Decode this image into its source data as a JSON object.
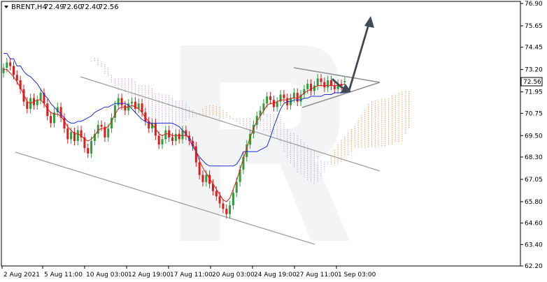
{
  "header": {
    "symbol": "BRENT,H4",
    "open": "72.49",
    "high": "72.60",
    "low": "72.40",
    "close": "72.56"
  },
  "current_price_label": "72.56",
  "colors": {
    "bull": "#2e9e3a",
    "bear": "#e01b1b",
    "tenkan": "#e01b1b",
    "kijun": "#1e2fd8",
    "cloud_bull": "#f0a060",
    "cloud_bear": "#c8a0e0",
    "channel": "#a0a0a0",
    "arrow": "#404a55"
  },
  "chart_data": {
    "type": "candlestick",
    "y_axis_ticks": [
      "76.90",
      "75.65",
      "74.45",
      "73.20",
      "71.95",
      "70.75",
      "69.50",
      "68.30",
      "67.05",
      "65.80",
      "64.60",
      "63.40",
      "62.20"
    ],
    "ylim": [
      62.2,
      76.9
    ],
    "x_axis_ticks": [
      "2 Aug 2021",
      "5 Aug 11:00",
      "10 Aug 03:00",
      "12 Aug 19:00",
      "17 Aug 11:00",
      "20 Aug 03:00",
      "24 Aug 19:00",
      "27 Aug 11:00",
      "1 Sep 03:00"
    ],
    "closes": [
      73.3,
      73.6,
      73.4,
      72.9,
      72.6,
      72.1,
      71.4,
      71.0,
      71.6,
      71.2,
      71.5,
      71.9,
      71.3,
      70.6,
      70.2,
      70.8,
      71.1,
      70.5,
      69.9,
      69.3,
      69.7,
      69.2,
      69.8,
      69.4,
      68.8,
      68.5,
      69.2,
      69.6,
      70.1,
      70.0,
      69.4,
      69.9,
      70.5,
      71.2,
      71.6,
      71.2,
      70.9,
      71.3,
      71.4,
      71.0,
      71.3,
      70.8,
      70.3,
      69.9,
      70.2,
      69.5,
      69.0,
      69.3,
      69.8,
      69.4,
      69.2,
      69.6,
      69.3,
      69.8,
      69.5,
      69.2,
      68.9,
      68.0,
      67.3,
      66.9,
      67.3,
      66.8,
      66.4,
      66.1,
      65.7,
      65.4,
      65.1,
      65.6,
      66.3,
      66.9,
      67.6,
      68.3,
      69.0,
      69.6,
      70.1,
      70.6,
      70.9,
      71.3,
      71.7,
      71.5,
      71.1,
      71.4,
      71.8,
      71.6,
      71.2,
      71.6,
      71.9,
      71.4,
      71.8,
      72.1,
      72.4,
      72.0,
      72.3,
      72.7,
      72.5,
      72.2,
      72.6,
      72.3,
      72.1,
      72.4,
      72.3,
      72.56
    ],
    "opens": [
      73.0,
      73.3,
      73.6,
      73.4,
      72.9,
      72.6,
      72.1,
      71.4,
      71.0,
      71.6,
      71.2,
      71.5,
      71.9,
      71.3,
      70.6,
      70.2,
      70.8,
      71.1,
      70.5,
      69.9,
      69.3,
      69.7,
      69.2,
      69.8,
      69.4,
      68.8,
      68.5,
      69.2,
      69.6,
      70.1,
      70.0,
      69.4,
      69.9,
      70.5,
      71.2,
      71.6,
      71.2,
      70.9,
      71.3,
      71.4,
      71.0,
      71.3,
      70.8,
      70.3,
      69.9,
      70.2,
      69.5,
      69.0,
      69.3,
      69.8,
      69.4,
      69.2,
      69.6,
      69.3,
      69.8,
      69.5,
      69.2,
      68.9,
      68.0,
      67.3,
      66.9,
      67.3,
      66.8,
      66.4,
      66.1,
      65.7,
      65.4,
      65.1,
      65.6,
      66.3,
      66.9,
      67.6,
      68.3,
      69.0,
      69.6,
      70.1,
      70.6,
      70.9,
      71.3,
      71.7,
      71.5,
      71.1,
      71.4,
      71.8,
      71.6,
      71.2,
      71.6,
      71.9,
      71.4,
      71.8,
      72.1,
      72.4,
      72.0,
      72.3,
      72.7,
      72.5,
      72.2,
      72.6,
      72.3,
      72.1,
      72.4,
      72.49
    ],
    "tenkan": [
      73.2,
      73.2,
      73.0,
      72.8,
      72.5,
      72.2,
      71.8,
      71.4,
      71.3,
      71.4,
      71.5,
      71.5,
      71.3,
      71.0,
      70.8,
      70.7,
      70.7,
      70.6,
      70.3,
      70.0,
      69.8,
      69.6,
      69.6,
      69.5,
      69.3,
      69.2,
      69.3,
      69.5,
      69.8,
      69.9,
      69.9,
      70.0,
      70.3,
      70.7,
      71.0,
      71.1,
      71.1,
      71.1,
      71.2,
      71.1,
      71.0,
      70.8,
      70.5,
      70.3,
      70.1,
      69.9,
      69.6,
      69.5,
      69.6,
      69.6,
      69.5,
      69.5,
      69.5,
      69.5,
      69.5,
      69.4,
      69.1,
      68.6,
      68.1,
      67.7,
      67.4,
      67.1,
      66.8,
      66.5,
      66.2,
      65.9,
      65.8,
      66.0,
      66.5,
      67.0,
      67.6,
      68.2,
      68.8,
      69.4,
      69.9,
      70.3,
      70.6,
      70.9,
      71.2,
      71.3,
      71.3,
      71.4,
      71.5,
      71.5,
      71.5,
      71.6,
      71.6,
      71.6,
      71.7,
      71.9,
      72.0,
      72.1,
      72.2,
      72.3,
      72.3,
      72.3,
      72.3,
      72.3,
      72.3,
      72.3,
      72.3,
      72.4
    ],
    "kijun": [
      74.1,
      74.1,
      73.8,
      73.8,
      73.4,
      73.4,
      73.1,
      72.9,
      72.8,
      72.6,
      72.4,
      72.1,
      71.8,
      71.6,
      71.3,
      71.1,
      70.9,
      70.7,
      70.5,
      70.3,
      70.2,
      70.2,
      70.3,
      70.3,
      70.4,
      70.5,
      70.6,
      70.8,
      70.9,
      71.0,
      71.1,
      71.1,
      71.2,
      71.3,
      71.3,
      71.3,
      71.3,
      71.2,
      71.0,
      70.8,
      70.6,
      70.4,
      70.3,
      70.2,
      70.2,
      70.2,
      70.2,
      70.2,
      70.2,
      70.2,
      70.2,
      70.1,
      70.0,
      69.8,
      69.6,
      69.3,
      68.9,
      68.6,
      68.3,
      68.1,
      67.9,
      67.8,
      67.8,
      67.8,
      67.8,
      67.8,
      67.8,
      67.8,
      67.8,
      67.9,
      68.2,
      68.6,
      68.6,
      68.6,
      68.6,
      68.6,
      68.7,
      68.8,
      68.9,
      69.4,
      70.0,
      70.5,
      71.0,
      71.3,
      71.4,
      71.4,
      71.5,
      71.5,
      71.5,
      71.6,
      71.6,
      71.7,
      71.7,
      71.7,
      71.7,
      71.8,
      71.8,
      71.8,
      71.9,
      71.9,
      71.9,
      71.9
    ]
  }
}
